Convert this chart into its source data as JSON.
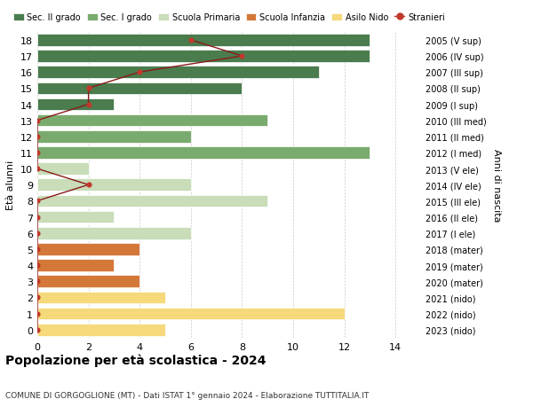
{
  "ages": [
    18,
    17,
    16,
    15,
    14,
    13,
    12,
    11,
    10,
    9,
    8,
    7,
    6,
    5,
    4,
    3,
    2,
    1,
    0
  ],
  "right_labels": [
    "2005 (V sup)",
    "2006 (IV sup)",
    "2007 (III sup)",
    "2008 (II sup)",
    "2009 (I sup)",
    "2010 (III med)",
    "2011 (II med)",
    "2012 (I med)",
    "2013 (V ele)",
    "2014 (IV ele)",
    "2015 (III ele)",
    "2016 (II ele)",
    "2017 (I ele)",
    "2018 (mater)",
    "2019 (mater)",
    "2020 (mater)",
    "2021 (nido)",
    "2022 (nido)",
    "2023 (nido)"
  ],
  "bar_values": [
    13,
    13,
    11,
    8,
    3,
    9,
    6,
    13,
    2,
    6,
    9,
    3,
    6,
    4,
    3,
    4,
    5,
    12,
    5
  ],
  "bar_colors": [
    "#4a7c4e",
    "#4a7c4e",
    "#4a7c4e",
    "#4a7c4e",
    "#4a7c4e",
    "#7aab6e",
    "#7aab6e",
    "#7aab6e",
    "#c8ddb8",
    "#c8ddb8",
    "#c8ddb8",
    "#c8ddb8",
    "#c8ddb8",
    "#d4783a",
    "#d4783a",
    "#d4783a",
    "#f5d97a",
    "#f5d97a",
    "#f5d97a"
  ],
  "stranieri_values": [
    6,
    8,
    4,
    2,
    2,
    0,
    0,
    0,
    0,
    2,
    0,
    0,
    0,
    0,
    0,
    0,
    0,
    0,
    0
  ],
  "legend_labels": [
    "Sec. II grado",
    "Sec. I grado",
    "Scuola Primaria",
    "Scuola Infanzia",
    "Asilo Nido",
    "Stranieri"
  ],
  "legend_colors": [
    "#4a7c4e",
    "#7aab6e",
    "#c8ddb8",
    "#d4783a",
    "#f5d97a",
    "#c0392b"
  ],
  "ylabel_left": "Età alunni",
  "ylabel_right": "Anni di nascita",
  "title": "Popolazione per età scolastica - 2024",
  "subtitle": "COMUNE DI GORGOGLIONE (MT) - Dati ISTAT 1° gennaio 2024 - Elaborazione TUTTITALIA.IT",
  "xlim": [
    0,
    15
  ],
  "xticks": [
    0,
    2,
    4,
    6,
    8,
    10,
    12,
    14
  ],
  "background_color": "#ffffff"
}
